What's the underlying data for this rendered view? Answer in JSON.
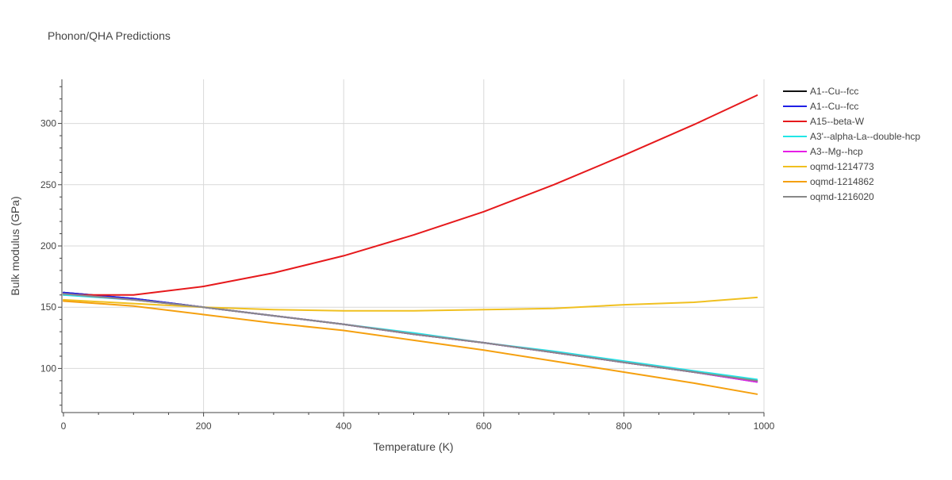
{
  "chart_data": {
    "type": "line",
    "title": "Phonon/QHA Predictions",
    "xlabel": "Temperature (K)",
    "ylabel": "Bulk modulus (GPa)",
    "xlim": [
      0,
      1000
    ],
    "ylim": [
      64,
      336
    ],
    "x_ticks": [
      0,
      200,
      400,
      600,
      800,
      1000
    ],
    "y_ticks": [
      100,
      150,
      200,
      250,
      300
    ],
    "grid": true,
    "legend_position": "top-right",
    "x": [
      0,
      100,
      200,
      300,
      400,
      500,
      600,
      700,
      800,
      900,
      990
    ],
    "series": [
      {
        "name": "A1--Cu--fcc",
        "color": "#111111",
        "values": [
          162,
          157,
          150,
          143,
          136,
          128,
          121,
          113,
          105,
          97,
          90
        ]
      },
      {
        "name": "A1--Cu--fcc",
        "color": "#1f1fe6",
        "values": [
          162,
          157,
          150,
          143,
          136,
          128,
          121,
          113,
          105,
          97,
          89
        ]
      },
      {
        "name": "A15--beta-W",
        "color": "#e6191c",
        "values": [
          160,
          160,
          167,
          178,
          192,
          209,
          228,
          250,
          274,
          299,
          323
        ]
      },
      {
        "name": "A3'--alpha-La--double-hcp",
        "color": "#22e6e6",
        "values": [
          160,
          156,
          150,
          143,
          136,
          129,
          121,
          114,
          106,
          98,
          91
        ]
      },
      {
        "name": "A3--Mg--hcp",
        "color": "#e61ee6",
        "values": [
          161,
          156,
          150,
          143,
          136,
          128,
          121,
          113,
          105,
          97,
          89
        ]
      },
      {
        "name": "oqmd-1214773",
        "color": "#f0c020",
        "values": [
          156,
          153,
          150,
          148,
          147,
          147,
          148,
          149,
          152,
          154,
          158
        ]
      },
      {
        "name": "oqmd-1214862",
        "color": "#f5a00f",
        "values": [
          155,
          151,
          144,
          137,
          131,
          123,
          115,
          106,
          97,
          88,
          79
        ]
      },
      {
        "name": "oqmd-1216020",
        "color": "#888888",
        "values": [
          161,
          156,
          150,
          143,
          136,
          128,
          121,
          113,
          105,
          97,
          90
        ]
      }
    ]
  }
}
